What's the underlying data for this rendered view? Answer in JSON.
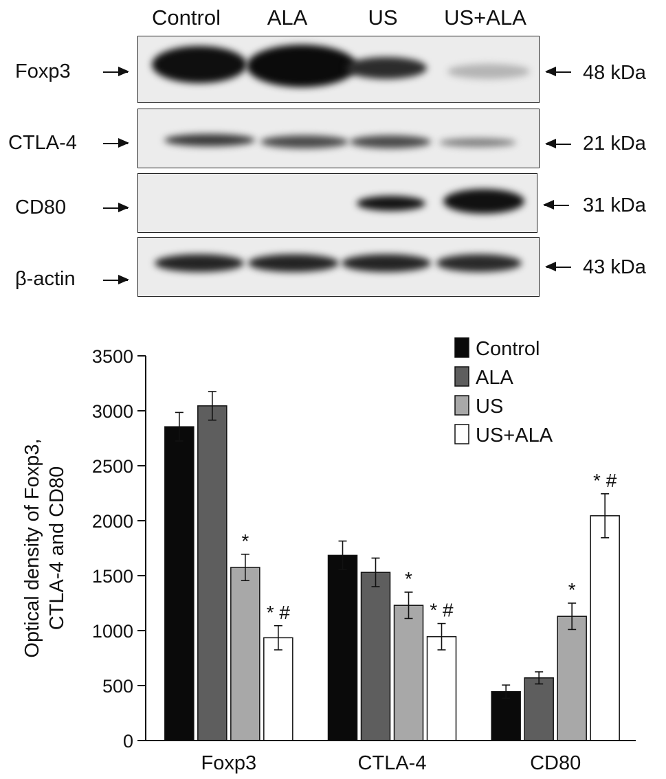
{
  "blot": {
    "lanes": [
      "Control",
      "ALA",
      "US",
      "US+ALA"
    ],
    "rows": [
      {
        "protein": "Foxp3",
        "size": "48 kDa"
      },
      {
        "protein": "CTLA-4",
        "size": "21 kDa"
      },
      {
        "protein": "CD80",
        "size": "31 kDa"
      },
      {
        "protein": "β-actin",
        "size": "43 kDa"
      }
    ]
  },
  "chart_data": {
    "type": "bar",
    "categories": [
      "Foxp3",
      "CTLA-4",
      "CD80"
    ],
    "ylabel_lines": [
      "Optical density of Foxp3,",
      "CTLA-4 and CD80"
    ],
    "ylim": [
      0,
      3500
    ],
    "yticks": [
      0,
      500,
      1000,
      1500,
      2000,
      2500,
      3000,
      3500
    ],
    "legend_position": "top-right",
    "series": [
      {
        "name": "Control",
        "color": "#0a0a0a",
        "values": [
          2855,
          1685,
          445
        ],
        "errors": [
          130,
          130,
          60
        ],
        "annotations": [
          "",
          "",
          ""
        ]
      },
      {
        "name": "ALA",
        "color": "#5e5e5e",
        "values": [
          3045,
          1530,
          570
        ],
        "errors": [
          130,
          130,
          55
        ],
        "annotations": [
          "",
          "",
          ""
        ]
      },
      {
        "name": "US",
        "color": "#a8a8a8",
        "values": [
          1575,
          1230,
          1130
        ],
        "errors": [
          120,
          120,
          120
        ],
        "annotations": [
          "*",
          "*",
          "*"
        ]
      },
      {
        "name": "US+ALA",
        "color": "#ffffff",
        "values": [
          935,
          945,
          2045
        ],
        "errors": [
          110,
          120,
          200
        ],
        "annotations": [
          "*#",
          "*#",
          "*#"
        ]
      }
    ]
  }
}
